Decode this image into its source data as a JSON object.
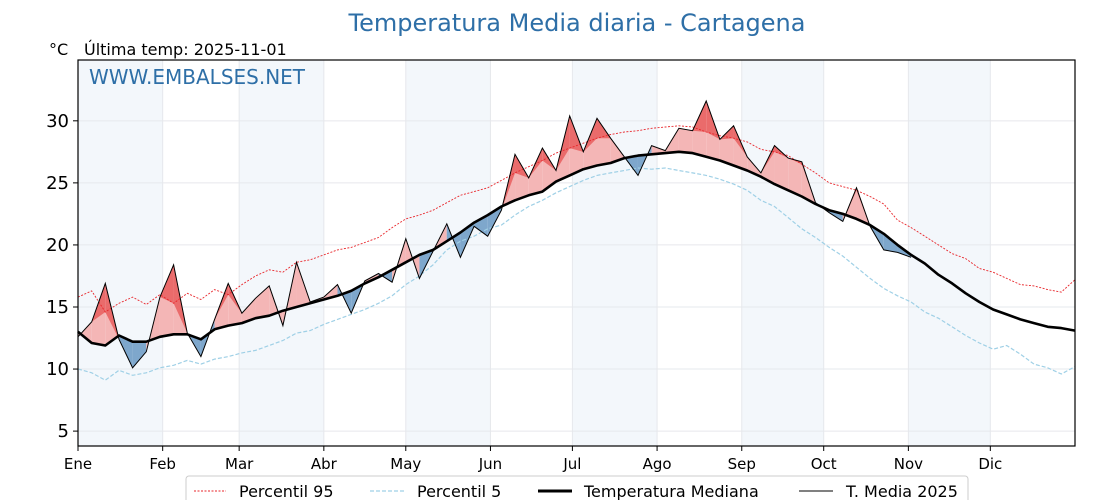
{
  "chart_data": {
    "type": "line",
    "title": "Temperatura Media diaria - Cartagena",
    "unit_label": "°C",
    "subtitle": "Última temp: 2025-11-01",
    "watermark": "WWW.EMBALSES.NET",
    "xlabel": "",
    "ylabel": "°C",
    "ylim": [
      3.8,
      34.9
    ],
    "xlim": [
      0,
      365
    ],
    "yticks": [
      5,
      10,
      15,
      20,
      25,
      30
    ],
    "month_ticks": [
      {
        "label": "Ene",
        "day": 0
      },
      {
        "label": "Feb",
        "day": 31
      },
      {
        "label": "Mar",
        "day": 59
      },
      {
        "label": "Abr",
        "day": 90
      },
      {
        "label": "May",
        "day": 120
      },
      {
        "label": "Jun",
        "day": 151
      },
      {
        "label": "Jul",
        "day": 181
      },
      {
        "label": "Ago",
        "day": 212
      },
      {
        "label": "Sep",
        "day": 243
      },
      {
        "label": "Oct",
        "day": 273
      },
      {
        "label": "Nov",
        "day": 304
      },
      {
        "label": "Dic",
        "day": 334
      }
    ],
    "grid": true,
    "legend_position": "bottom-center",
    "colors": {
      "p95": "#e8262b",
      "p5": "#9fd0e6",
      "median": "#000000",
      "media2025": "#000000",
      "above_fill": "#f4b6b6",
      "above_p95_fill": "#ea6b6b",
      "below_fill": "#7ea7cc",
      "band": "#f3f7fb",
      "title": "#2e6fa7"
    },
    "days": [
      0,
      5,
      10,
      15,
      20,
      25,
      30,
      35,
      40,
      45,
      50,
      55,
      60,
      65,
      70,
      75,
      80,
      85,
      90,
      95,
      100,
      105,
      110,
      115,
      120,
      125,
      130,
      135,
      140,
      145,
      150,
      155,
      160,
      165,
      170,
      175,
      180,
      185,
      190,
      195,
      200,
      205,
      210,
      215,
      220,
      225,
      230,
      235,
      240,
      245,
      250,
      255,
      260,
      265,
      270,
      275,
      280,
      285,
      290,
      295,
      300,
      305,
      310,
      315,
      320,
      325,
      330,
      335,
      340,
      345,
      350,
      355,
      360,
      365
    ],
    "series": [
      {
        "name": "Percentil 95",
        "style": "dotted",
        "values": [
          15.8,
          16.3,
          14.6,
          15.3,
          15.8,
          15.2,
          16.0,
          15.3,
          16.1,
          15.6,
          16.4,
          16.0,
          16.8,
          17.5,
          18.0,
          17.8,
          18.6,
          18.8,
          19.2,
          19.6,
          19.8,
          20.2,
          20.6,
          21.4,
          22.1,
          22.4,
          22.8,
          23.4,
          24.0,
          24.3,
          24.6,
          25.2,
          25.8,
          26.3,
          26.8,
          27.4,
          27.8,
          28.2,
          28.6,
          28.9,
          29.1,
          29.2,
          29.4,
          29.5,
          29.6,
          29.5,
          29.1,
          28.8,
          28.6,
          28.3,
          27.7,
          27.5,
          27.2,
          26.5,
          25.8,
          25.0,
          24.7,
          24.4,
          23.9,
          23.3,
          22.0,
          21.4,
          20.7,
          20.0,
          19.3,
          18.9,
          18.1,
          17.8,
          17.3,
          16.8,
          16.7,
          16.4,
          16.2,
          17.2
        ]
      },
      {
        "name": "Percentil 5",
        "style": "dashed",
        "values": [
          10.0,
          9.7,
          9.1,
          9.9,
          9.5,
          9.7,
          10.1,
          10.3,
          10.7,
          10.4,
          10.8,
          11.0,
          11.3,
          11.5,
          11.9,
          12.3,
          12.9,
          13.1,
          13.6,
          14.0,
          14.4,
          14.8,
          15.3,
          15.9,
          16.8,
          17.5,
          18.4,
          19.6,
          20.3,
          20.7,
          21.3,
          21.6,
          22.4,
          23.1,
          23.6,
          24.2,
          24.7,
          25.2,
          25.6,
          25.8,
          26.0,
          26.2,
          26.1,
          26.2,
          26.0,
          25.8,
          25.6,
          25.3,
          24.9,
          24.4,
          23.6,
          23.1,
          22.2,
          21.3,
          20.6,
          19.8,
          19.1,
          18.2,
          17.3,
          16.5,
          15.9,
          15.4,
          14.6,
          14.1,
          13.4,
          12.7,
          12.1,
          11.6,
          11.9,
          11.2,
          10.4,
          10.1,
          9.6,
          10.2
        ]
      },
      {
        "name": "Temperatura Mediana",
        "style": "thick",
        "values": [
          13.0,
          12.1,
          11.9,
          12.7,
          12.2,
          12.2,
          12.6,
          12.8,
          12.8,
          12.4,
          13.2,
          13.5,
          13.7,
          14.1,
          14.3,
          14.7,
          15.0,
          15.3,
          15.6,
          15.9,
          16.3,
          16.9,
          17.4,
          18.0,
          18.6,
          19.2,
          19.6,
          20.3,
          21.0,
          21.8,
          22.4,
          23.1,
          23.6,
          24.0,
          24.3,
          25.1,
          25.6,
          26.1,
          26.4,
          26.6,
          27.0,
          27.2,
          27.3,
          27.4,
          27.5,
          27.4,
          27.1,
          26.8,
          26.4,
          26.0,
          25.5,
          24.9,
          24.4,
          23.9,
          23.3,
          22.8,
          22.5,
          22.1,
          21.6,
          20.9,
          20.0,
          19.2,
          18.5,
          17.6,
          16.9,
          16.1,
          15.4,
          14.8,
          14.4,
          14.0,
          13.7,
          13.4,
          13.3,
          13.1
        ]
      },
      {
        "name": "T. Media 2025",
        "style": "thin",
        "values": [
          12.6,
          13.8,
          16.9,
          12.4,
          10.1,
          11.4,
          15.8,
          18.4,
          12.9,
          11.0,
          14.0,
          16.9,
          14.5,
          15.7,
          16.7,
          13.5,
          18.6,
          15.4,
          15.8,
          16.8,
          14.5,
          17.1,
          17.7,
          17.0,
          20.5,
          17.3,
          19.5,
          21.7,
          19.0,
          21.5,
          20.7,
          22.8,
          27.3,
          25.4,
          27.8,
          26.0,
          30.4,
          27.5,
          30.2,
          28.6,
          27.1,
          25.6,
          28.0,
          27.6,
          29.4,
          29.2,
          31.6,
          28.5,
          29.6,
          27.1,
          25.8,
          28.0,
          27.0,
          26.7,
          23.4,
          22.6,
          21.9,
          24.6,
          21.5,
          19.6,
          19.4,
          19.0
        ]
      }
    ]
  },
  "legend": {
    "items": [
      {
        "label": "Percentil 95"
      },
      {
        "label": "Percentil 5"
      },
      {
        "label": "Temperatura Mediana"
      },
      {
        "label": "T. Media 2025"
      }
    ]
  }
}
